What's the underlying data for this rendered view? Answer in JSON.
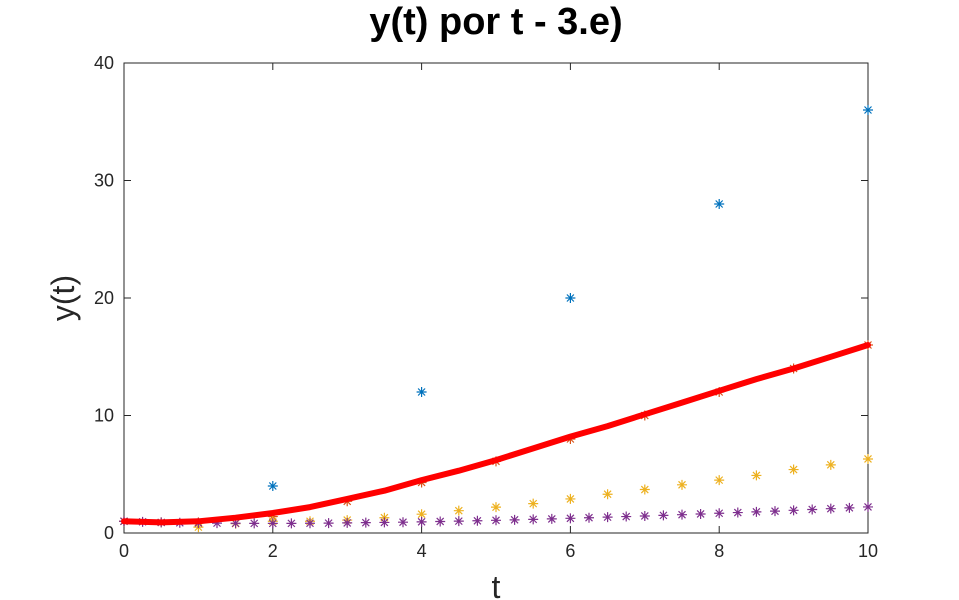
{
  "chart_data": {
    "type": "scatter",
    "title": "y(t) por t - 3.e)",
    "xlabel": "t",
    "ylabel": "y(t)",
    "xlim": [
      0,
      10
    ],
    "ylim": [
      0,
      40
    ],
    "xticks": [
      0,
      2,
      4,
      6,
      8,
      10
    ],
    "yticks": [
      0,
      10,
      20,
      30,
      40
    ],
    "grid": false,
    "legend": "none",
    "series": [
      {
        "marker": "asterisk",
        "color": "#0072BD",
        "x": [
          0,
          2,
          4,
          6,
          8,
          10
        ],
        "y": [
          1,
          4,
          12,
          20,
          28,
          36
        ]
      },
      {
        "marker": "asterisk",
        "color": "#D95319",
        "x": [
          0,
          1,
          2,
          3,
          4,
          5,
          6,
          7,
          8,
          9,
          10
        ],
        "y": [
          1,
          0.9,
          1.4,
          2.7,
          4.3,
          6.1,
          8.0,
          10.0,
          12.0,
          14.0,
          16.0
        ]
      },
      {
        "marker": "asterisk",
        "color": "#EDB120",
        "x": [
          0,
          0.5,
          1,
          1.5,
          2,
          2.5,
          3,
          3.5,
          4,
          4.5,
          5,
          5.5,
          6,
          6.5,
          7,
          7.5,
          8,
          8.5,
          9,
          9.5,
          10
        ],
        "y": [
          1,
          0.9,
          0.5,
          0.8,
          1.0,
          1.0,
          1.1,
          1.3,
          1.6,
          1.9,
          2.2,
          2.5,
          2.9,
          3.3,
          3.7,
          4.1,
          4.5,
          4.9,
          5.4,
          5.8,
          6.3
        ]
      },
      {
        "marker": "asterisk",
        "color": "#7E2F8E",
        "x": [
          0,
          0.25,
          0.5,
          0.75,
          1,
          1.25,
          1.5,
          1.75,
          2,
          2.25,
          2.5,
          2.75,
          3,
          3.25,
          3.5,
          3.75,
          4,
          4.25,
          4.5,
          4.75,
          5,
          5.25,
          5.5,
          5.75,
          6,
          6.25,
          6.5,
          6.75,
          7,
          7.25,
          7.5,
          7.75,
          8,
          8.25,
          8.5,
          8.75,
          9,
          9.25,
          9.5,
          9.75,
          10
        ],
        "y": [
          1,
          0.95,
          0.9,
          0.87,
          0.85,
          0.84,
          0.83,
          0.82,
          0.82,
          0.82,
          0.83,
          0.84,
          0.86,
          0.88,
          0.9,
          0.92,
          0.95,
          0.98,
          1.01,
          1.04,
          1.08,
          1.12,
          1.16,
          1.2,
          1.25,
          1.3,
          1.35,
          1.4,
          1.45,
          1.5,
          1.56,
          1.62,
          1.68,
          1.74,
          1.8,
          1.86,
          1.93,
          2.0,
          2.07,
          2.14,
          2.22
        ]
      },
      {
        "marker": "line",
        "color": "#FF0000",
        "x": [
          0,
          0.5,
          1,
          1.5,
          2,
          2.5,
          3,
          3.5,
          4,
          4.5,
          5,
          5.5,
          6,
          6.5,
          7,
          7.5,
          8,
          8.5,
          9,
          9.5,
          10
        ],
        "y": [
          1,
          0.9,
          1.0,
          1.3,
          1.7,
          2.2,
          2.9,
          3.6,
          4.5,
          5.3,
          6.2,
          7.2,
          8.2,
          9.1,
          10.1,
          11.1,
          12.1,
          13.1,
          14.0,
          15.0,
          16.0
        ]
      }
    ]
  }
}
